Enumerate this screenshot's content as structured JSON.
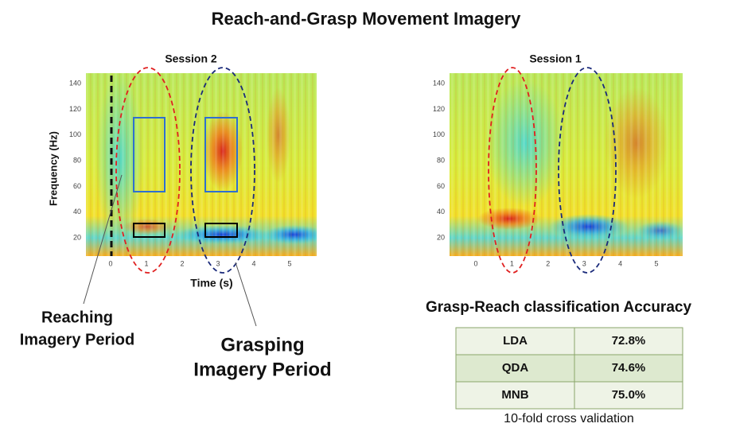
{
  "header": {
    "title": "Reach-and-Grasp Movement Imagery"
  },
  "panels": [
    {
      "title": "Session 2",
      "y_label": "Frequency (Hz)",
      "x_label": "Time (s)",
      "yticks": [
        20,
        40,
        60,
        80,
        100,
        120,
        140
      ],
      "xticks": [
        0,
        1,
        2,
        3,
        4,
        5
      ]
    },
    {
      "title": "Session 1",
      "yticks": [
        20,
        40,
        60,
        80,
        100,
        120,
        140
      ],
      "xticks": [
        0,
        1,
        2,
        3,
        4,
        5
      ]
    }
  ],
  "annotations": [
    {
      "lines": [
        "Reaching",
        "Imagery Period"
      ]
    },
    {
      "lines": [
        "Grasping",
        "Imagery Period"
      ]
    }
  ],
  "table": {
    "title": "Grasp-Reach classification Accuracy",
    "rows": [
      [
        "LDA",
        "72.8%"
      ],
      [
        "QDA",
        "74.6%"
      ],
      [
        "MNB",
        "75.0%"
      ]
    ],
    "caption": "10-fold cross validation"
  }
}
